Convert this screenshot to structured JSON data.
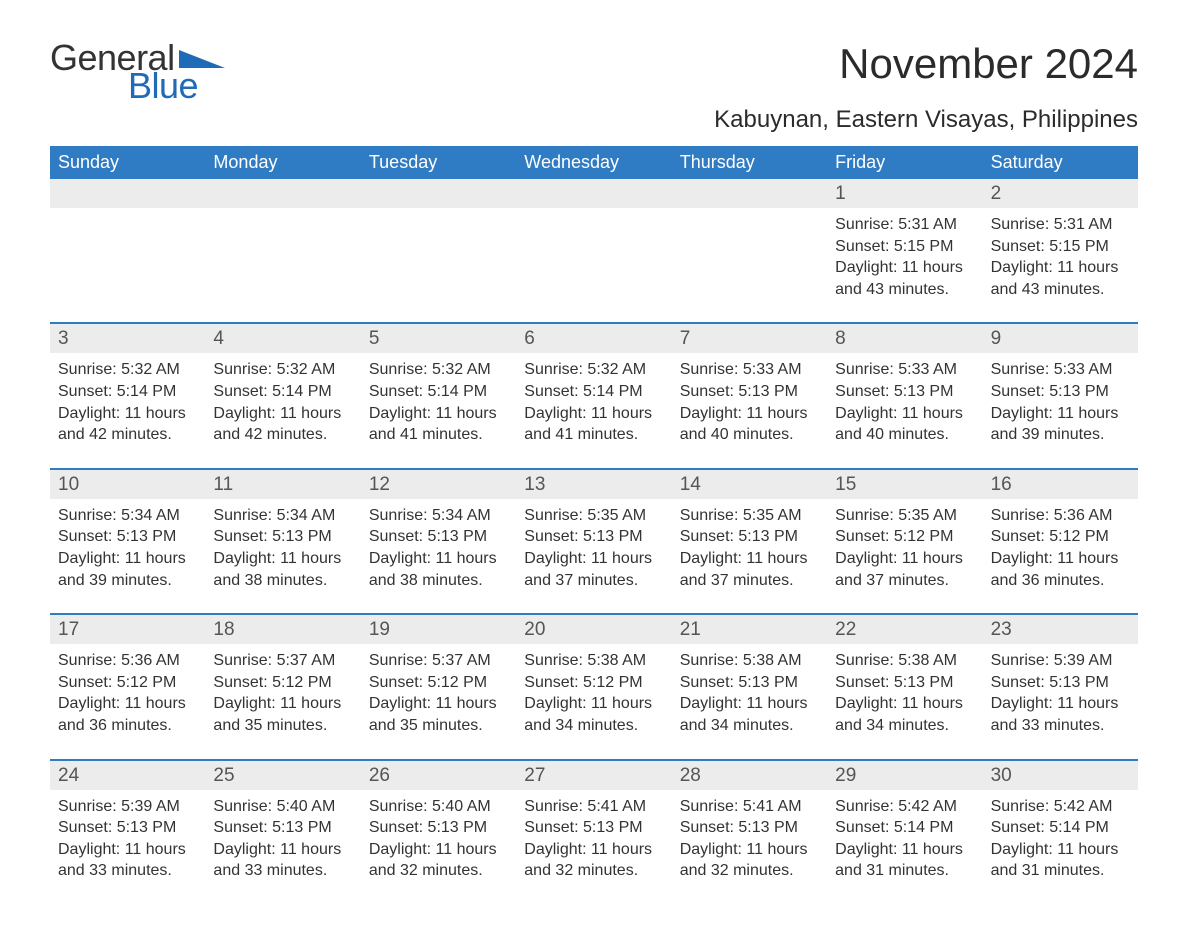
{
  "logo": {
    "text1": "General",
    "text2": "Blue",
    "tri_color": "#1f6bb7"
  },
  "title": "November 2024",
  "location": "Kabuynan, Eastern Visayas, Philippines",
  "colors": {
    "header_bg": "#2f7bc4",
    "header_text": "#ffffff",
    "date_row_bg": "#ececec",
    "week_border": "#2f7bc4",
    "body_text": "#333333",
    "logo_blue": "#1f6bb7"
  },
  "day_names": [
    "Sunday",
    "Monday",
    "Tuesday",
    "Wednesday",
    "Thursday",
    "Friday",
    "Saturday"
  ],
  "weeks": [
    {
      "dates": [
        "",
        "",
        "",
        "",
        "",
        "1",
        "2"
      ],
      "cells": [
        null,
        null,
        null,
        null,
        null,
        {
          "sunrise": "Sunrise: 5:31 AM",
          "sunset": "Sunset: 5:15 PM",
          "day1": "Daylight: 11 hours",
          "day2": "and 43 minutes."
        },
        {
          "sunrise": "Sunrise: 5:31 AM",
          "sunset": "Sunset: 5:15 PM",
          "day1": "Daylight: 11 hours",
          "day2": "and 43 minutes."
        }
      ]
    },
    {
      "dates": [
        "3",
        "4",
        "5",
        "6",
        "7",
        "8",
        "9"
      ],
      "cells": [
        {
          "sunrise": "Sunrise: 5:32 AM",
          "sunset": "Sunset: 5:14 PM",
          "day1": "Daylight: 11 hours",
          "day2": "and 42 minutes."
        },
        {
          "sunrise": "Sunrise: 5:32 AM",
          "sunset": "Sunset: 5:14 PM",
          "day1": "Daylight: 11 hours",
          "day2": "and 42 minutes."
        },
        {
          "sunrise": "Sunrise: 5:32 AM",
          "sunset": "Sunset: 5:14 PM",
          "day1": "Daylight: 11 hours",
          "day2": "and 41 minutes."
        },
        {
          "sunrise": "Sunrise: 5:32 AM",
          "sunset": "Sunset: 5:14 PM",
          "day1": "Daylight: 11 hours",
          "day2": "and 41 minutes."
        },
        {
          "sunrise": "Sunrise: 5:33 AM",
          "sunset": "Sunset: 5:13 PM",
          "day1": "Daylight: 11 hours",
          "day2": "and 40 minutes."
        },
        {
          "sunrise": "Sunrise: 5:33 AM",
          "sunset": "Sunset: 5:13 PM",
          "day1": "Daylight: 11 hours",
          "day2": "and 40 minutes."
        },
        {
          "sunrise": "Sunrise: 5:33 AM",
          "sunset": "Sunset: 5:13 PM",
          "day1": "Daylight: 11 hours",
          "day2": "and 39 minutes."
        }
      ]
    },
    {
      "dates": [
        "10",
        "11",
        "12",
        "13",
        "14",
        "15",
        "16"
      ],
      "cells": [
        {
          "sunrise": "Sunrise: 5:34 AM",
          "sunset": "Sunset: 5:13 PM",
          "day1": "Daylight: 11 hours",
          "day2": "and 39 minutes."
        },
        {
          "sunrise": "Sunrise: 5:34 AM",
          "sunset": "Sunset: 5:13 PM",
          "day1": "Daylight: 11 hours",
          "day2": "and 38 minutes."
        },
        {
          "sunrise": "Sunrise: 5:34 AM",
          "sunset": "Sunset: 5:13 PM",
          "day1": "Daylight: 11 hours",
          "day2": "and 38 minutes."
        },
        {
          "sunrise": "Sunrise: 5:35 AM",
          "sunset": "Sunset: 5:13 PM",
          "day1": "Daylight: 11 hours",
          "day2": "and 37 minutes."
        },
        {
          "sunrise": "Sunrise: 5:35 AM",
          "sunset": "Sunset: 5:13 PM",
          "day1": "Daylight: 11 hours",
          "day2": "and 37 minutes."
        },
        {
          "sunrise": "Sunrise: 5:35 AM",
          "sunset": "Sunset: 5:12 PM",
          "day1": "Daylight: 11 hours",
          "day2": "and 37 minutes."
        },
        {
          "sunrise": "Sunrise: 5:36 AM",
          "sunset": "Sunset: 5:12 PM",
          "day1": "Daylight: 11 hours",
          "day2": "and 36 minutes."
        }
      ]
    },
    {
      "dates": [
        "17",
        "18",
        "19",
        "20",
        "21",
        "22",
        "23"
      ],
      "cells": [
        {
          "sunrise": "Sunrise: 5:36 AM",
          "sunset": "Sunset: 5:12 PM",
          "day1": "Daylight: 11 hours",
          "day2": "and 36 minutes."
        },
        {
          "sunrise": "Sunrise: 5:37 AM",
          "sunset": "Sunset: 5:12 PM",
          "day1": "Daylight: 11 hours",
          "day2": "and 35 minutes."
        },
        {
          "sunrise": "Sunrise: 5:37 AM",
          "sunset": "Sunset: 5:12 PM",
          "day1": "Daylight: 11 hours",
          "day2": "and 35 minutes."
        },
        {
          "sunrise": "Sunrise: 5:38 AM",
          "sunset": "Sunset: 5:12 PM",
          "day1": "Daylight: 11 hours",
          "day2": "and 34 minutes."
        },
        {
          "sunrise": "Sunrise: 5:38 AM",
          "sunset": "Sunset: 5:13 PM",
          "day1": "Daylight: 11 hours",
          "day2": "and 34 minutes."
        },
        {
          "sunrise": "Sunrise: 5:38 AM",
          "sunset": "Sunset: 5:13 PM",
          "day1": "Daylight: 11 hours",
          "day2": "and 34 minutes."
        },
        {
          "sunrise": "Sunrise: 5:39 AM",
          "sunset": "Sunset: 5:13 PM",
          "day1": "Daylight: 11 hours",
          "day2": "and 33 minutes."
        }
      ]
    },
    {
      "dates": [
        "24",
        "25",
        "26",
        "27",
        "28",
        "29",
        "30"
      ],
      "cells": [
        {
          "sunrise": "Sunrise: 5:39 AM",
          "sunset": "Sunset: 5:13 PM",
          "day1": "Daylight: 11 hours",
          "day2": "and 33 minutes."
        },
        {
          "sunrise": "Sunrise: 5:40 AM",
          "sunset": "Sunset: 5:13 PM",
          "day1": "Daylight: 11 hours",
          "day2": "and 33 minutes."
        },
        {
          "sunrise": "Sunrise: 5:40 AM",
          "sunset": "Sunset: 5:13 PM",
          "day1": "Daylight: 11 hours",
          "day2": "and 32 minutes."
        },
        {
          "sunrise": "Sunrise: 5:41 AM",
          "sunset": "Sunset: 5:13 PM",
          "day1": "Daylight: 11 hours",
          "day2": "and 32 minutes."
        },
        {
          "sunrise": "Sunrise: 5:41 AM",
          "sunset": "Sunset: 5:13 PM",
          "day1": "Daylight: 11 hours",
          "day2": "and 32 minutes."
        },
        {
          "sunrise": "Sunrise: 5:42 AM",
          "sunset": "Sunset: 5:14 PM",
          "day1": "Daylight: 11 hours",
          "day2": "and 31 minutes."
        },
        {
          "sunrise": "Sunrise: 5:42 AM",
          "sunset": "Sunset: 5:14 PM",
          "day1": "Daylight: 11 hours",
          "day2": "and 31 minutes."
        }
      ]
    }
  ]
}
